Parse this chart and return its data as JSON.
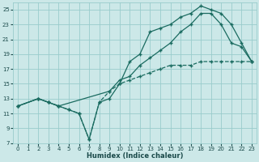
{
  "xlabel": "Humidex (Indice chaleur)",
  "bg_color": "#cce8e8",
  "grid_color": "#99cccc",
  "line_color": "#1a6b60",
  "xlim": [
    -0.5,
    23.5
  ],
  "ylim": [
    7,
    26
  ],
  "xticks": [
    0,
    1,
    2,
    3,
    4,
    5,
    6,
    7,
    8,
    9,
    10,
    11,
    12,
    13,
    14,
    15,
    16,
    17,
    18,
    19,
    20,
    21,
    22,
    23
  ],
  "yticks": [
    7,
    9,
    11,
    13,
    15,
    17,
    19,
    21,
    23,
    25
  ],
  "line1_x": [
    0,
    2,
    3,
    4,
    5,
    6,
    7,
    8,
    9,
    10,
    11,
    12,
    13,
    14,
    15,
    16,
    17,
    18,
    19,
    20,
    21,
    22,
    23
  ],
  "line1_y": [
    12,
    13,
    12.5,
    12,
    11.5,
    11,
    7.5,
    12.5,
    13,
    15,
    18,
    19,
    22,
    22.5,
    23,
    24,
    24.5,
    25.5,
    25,
    24.5,
    23,
    20.5,
    18
  ],
  "line2_x": [
    0,
    2,
    3,
    4,
    5,
    6,
    7,
    8,
    9,
    10,
    11,
    12,
    13,
    14,
    15,
    16,
    17,
    18,
    19,
    20,
    21,
    22,
    23
  ],
  "line2_y": [
    12,
    13,
    12.5,
    12,
    11.5,
    11,
    7.5,
    12.5,
    14,
    15,
    15.5,
    16,
    16.5,
    17,
    17.5,
    17.5,
    17.5,
    18,
    18,
    18,
    18,
    18,
    18
  ],
  "line3_x": [
    0,
    2,
    3,
    4,
    9,
    10,
    11,
    12,
    13,
    14,
    15,
    16,
    17,
    18,
    19,
    20,
    21,
    22,
    23
  ],
  "line3_y": [
    12,
    13,
    12.5,
    12,
    14,
    15.5,
    16,
    17.5,
    18.5,
    19.5,
    20.5,
    22,
    23,
    24.5,
    24.5,
    23,
    20.5,
    20,
    18
  ]
}
